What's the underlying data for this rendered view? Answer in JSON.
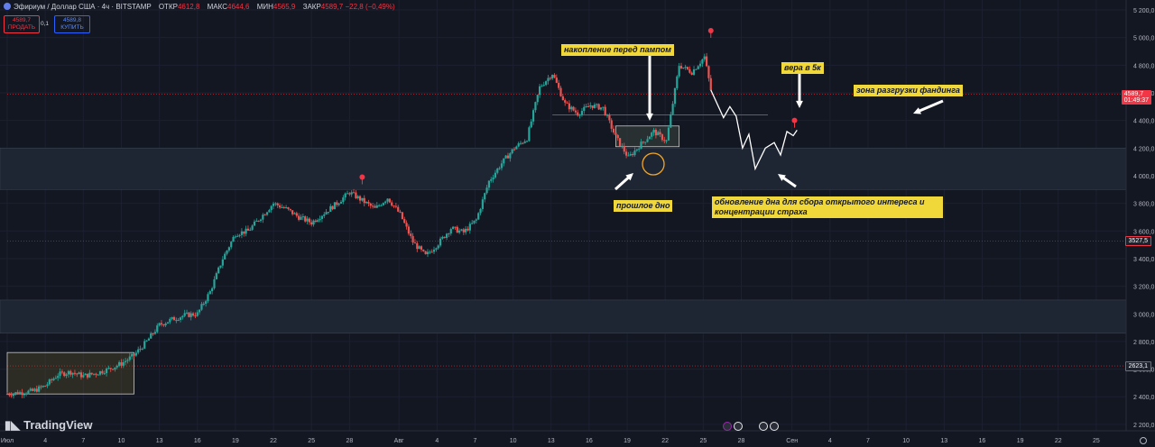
{
  "header": {
    "symbol": "Эфириум / Доллар США · 4ч · BITSTAMP",
    "open_label": "ОТКР",
    "open": "4612,8",
    "high_label": "МАКС",
    "high": "4644,6",
    "low_label": "МИН",
    "low": "4565,9",
    "close_label": "ЗАКР",
    "close": "4589,7",
    "change": "−22,8 (−0,49%)",
    "sell_price": "4589,7",
    "sell_label": "ПРОДАТЬ",
    "buy_price": "4589,8",
    "buy_label": "КУПИТЬ",
    "spread": "0,1"
  },
  "price_labels": {
    "current": "4589,7",
    "timer": "01:49:37",
    "level1": "3527,5",
    "level2": "2623,1"
  },
  "annotations": {
    "accumulation": "накопление перед пампом",
    "belief": "вера в 5к",
    "funding": "зона разгрузки фандинга",
    "prev_low": "прошлое дно",
    "renew_low": "обновление дна для сбора открытого интереса и концентрации страха"
  },
  "logo": "TradingView",
  "colors": {
    "bg": "#131722",
    "up": "#26a69a",
    "down": "#ef5350",
    "zone": "#1e2633",
    "annotation": "#f0d83a",
    "level": "#b22833"
  },
  "chart_data": {
    "type": "candlestick",
    "title": "",
    "ylim": [
      2150,
      5300
    ],
    "y_ticks": [
      2200,
      2400,
      2600,
      2800,
      3000,
      3200,
      3400,
      3600,
      3800,
      4000,
      4200,
      4400,
      4600,
      4800,
      5000,
      5200
    ],
    "x_ticks": [
      {
        "t": 0,
        "label": "Июл"
      },
      {
        "t": 3,
        "label": "4"
      },
      {
        "t": 6,
        "label": "7"
      },
      {
        "t": 9,
        "label": "10"
      },
      {
        "t": 12,
        "label": "13"
      },
      {
        "t": 15,
        "label": "16"
      },
      {
        "t": 18,
        "label": "19"
      },
      {
        "t": 21,
        "label": "22"
      },
      {
        "t": 24,
        "label": "25"
      },
      {
        "t": 27,
        "label": "28"
      },
      {
        "t": 30.9,
        "label": "Авг"
      },
      {
        "t": 33.9,
        "label": "4"
      },
      {
        "t": 36.9,
        "label": "7"
      },
      {
        "t": 39.9,
        "label": "10"
      },
      {
        "t": 42.9,
        "label": "13"
      },
      {
        "t": 45.9,
        "label": "16"
      },
      {
        "t": 48.9,
        "label": "19"
      },
      {
        "t": 51.9,
        "label": "22"
      },
      {
        "t": 54.9,
        "label": "25"
      },
      {
        "t": 57.9,
        "label": "28"
      },
      {
        "t": 61.9,
        "label": "Сен"
      },
      {
        "t": 64.9,
        "label": "4"
      },
      {
        "t": 67.9,
        "label": "7"
      },
      {
        "t": 70.9,
        "label": "10"
      },
      {
        "t": 73.9,
        "label": "13"
      },
      {
        "t": 76.9,
        "label": "16"
      },
      {
        "t": 79.9,
        "label": "19"
      },
      {
        "t": 82.9,
        "label": "22"
      },
      {
        "t": 85.9,
        "label": "25"
      }
    ],
    "price_path": [
      [
        0,
        2420
      ],
      [
        2,
        2440
      ],
      [
        3,
        2480
      ],
      [
        4,
        2560
      ],
      [
        5,
        2580
      ],
      [
        6,
        2550
      ],
      [
        7,
        2570
      ],
      [
        8,
        2600
      ],
      [
        9,
        2640
      ],
      [
        10,
        2700
      ],
      [
        11,
        2800
      ],
      [
        12,
        2920
      ],
      [
        13,
        2960
      ],
      [
        14,
        2990
      ],
      [
        15,
        3000
      ],
      [
        16,
        3160
      ],
      [
        17,
        3400
      ],
      [
        18,
        3580
      ],
      [
        19,
        3600
      ],
      [
        20,
        3700
      ],
      [
        21,
        3800
      ],
      [
        22,
        3760
      ],
      [
        23,
        3700
      ],
      [
        24,
        3660
      ],
      [
        25,
        3730
      ],
      [
        26,
        3800
      ],
      [
        27,
        3880
      ],
      [
        28,
        3820
      ],
      [
        29,
        3760
      ],
      [
        30,
        3840
      ],
      [
        31,
        3720
      ],
      [
        32,
        3520
      ],
      [
        33,
        3420
      ],
      [
        34,
        3510
      ],
      [
        35,
        3620
      ],
      [
        36,
        3590
      ],
      [
        37,
        3680
      ],
      [
        38,
        3960
      ],
      [
        39,
        4090
      ],
      [
        40,
        4200
      ],
      [
        41,
        4270
      ],
      [
        42,
        4640
      ],
      [
        43,
        4740
      ],
      [
        44,
        4520
      ],
      [
        45,
        4450
      ],
      [
        46,
        4510
      ],
      [
        47,
        4490
      ],
      [
        48,
        4280
      ],
      [
        49,
        4130
      ],
      [
        50,
        4230
      ],
      [
        51,
        4320
      ],
      [
        52,
        4250
      ],
      [
        53,
        4800
      ],
      [
        54,
        4750
      ],
      [
        55,
        4860
      ],
      [
        55.5,
        4620
      ]
    ],
    "projection": [
      [
        55.5,
        4620
      ],
      [
        56.5,
        4420
      ],
      [
        57,
        4500
      ],
      [
        57.5,
        4430
      ],
      [
        58,
        4200
      ],
      [
        58.5,
        4300
      ],
      [
        59,
        4050
      ],
      [
        59.8,
        4200
      ],
      [
        60.5,
        4240
      ],
      [
        61,
        4150
      ],
      [
        61.5,
        4320
      ],
      [
        62,
        4290
      ],
      [
        62.3,
        4330
      ]
    ],
    "zones": [
      [
        3900,
        4200
      ],
      [
        2860,
        3100
      ]
    ],
    "levels": [
      {
        "price": 4589.7,
        "from": 0
      },
      {
        "price": 4440,
        "from": 43,
        "to": 60
      },
      {
        "price": 3527.5,
        "from": 0
      },
      {
        "price": 2623.1,
        "from": 0
      }
    ],
    "boxes": [
      {
        "t0": 48,
        "t1": 53,
        "p0": 4210,
        "p1": 4360
      },
      {
        "t0": 0,
        "t1": 10,
        "p0": 2420,
        "p1": 2720
      }
    ],
    "markers": [
      {
        "t": 28,
        "p": 3990
      },
      {
        "t": 55.5,
        "p": 5050
      },
      {
        "t": 62.1,
        "p": 4400
      }
    ]
  }
}
